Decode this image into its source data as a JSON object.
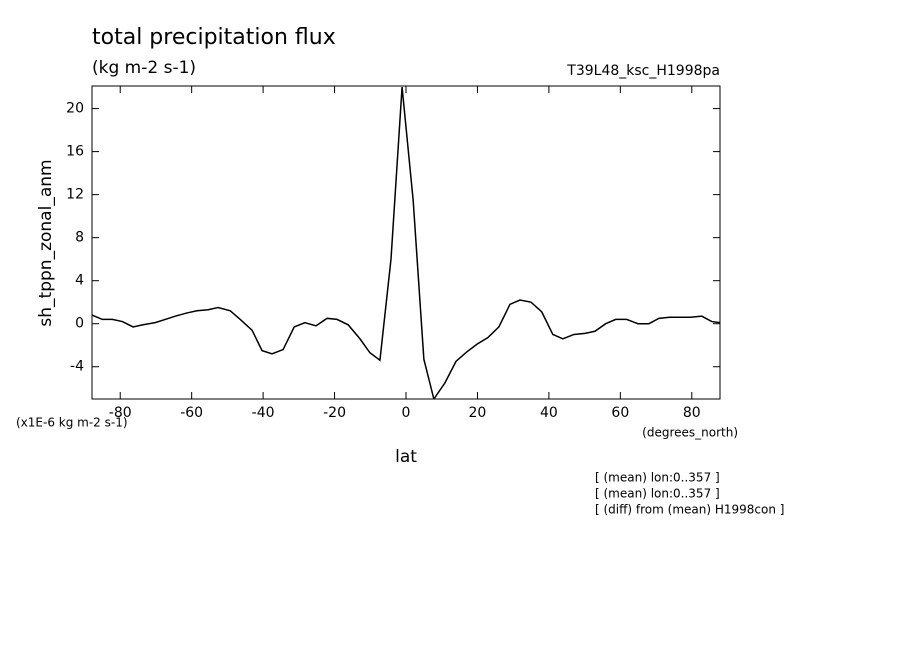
{
  "chart_data": {
    "type": "line",
    "title": "total precipitation flux",
    "subtitle": "(kg m-2 s-1)",
    "run_label": "T39L48_ksc_H1998pa",
    "y_label": "sh_tppn_zonal_anm",
    "y_unit_label": "(x1E-6 kg m-2 s-1)",
    "x_unit_label": "(degrees_north)",
    "x_label": "lat",
    "notes": [
      "[ (mean) lon:0..357 ]",
      "[ (mean) lon:0..357 ]",
      "[ (diff) from (mean) H1998con ]"
    ],
    "x": [
      -87.9,
      -85,
      -82.2,
      -79.4,
      -76.4,
      -73.6,
      -70.2,
      -67.4,
      -64.6,
      -61.3,
      -58.5,
      -55.4,
      -52.6,
      -49.2,
      -46.4,
      -43.1,
      -40.3,
      -37.5,
      -34.4,
      -31.3,
      -28.3,
      -25.2,
      -22.1,
      -19.3,
      -16.2,
      -12.9,
      -10.1,
      -7.3,
      -4.2,
      -1.1,
      2.0,
      5.0,
      7.8,
      10.9,
      14.0,
      17.1,
      19.9,
      22.9,
      26.0,
      29.1,
      31.9,
      35.0,
      38.0,
      41.1,
      43.9,
      47.0,
      50.1,
      52.9,
      55.9,
      58.7,
      61.8,
      64.9,
      68.0,
      70.8,
      73.8,
      76.6,
      79.7,
      82.8,
      85.6,
      87.9
    ],
    "series": [
      {
        "color": "#000000",
        "values": [
          0.8,
          0.4,
          0.4,
          0.2,
          -0.3,
          -0.1,
          0.1,
          0.4,
          0.7,
          1.0,
          1.2,
          1.3,
          1.5,
          1.2,
          0.4,
          -0.6,
          -2.5,
          -2.8,
          -2.4,
          -0.3,
          0.1,
          -0.2,
          0.5,
          0.4,
          -0.1,
          -1.4,
          -2.7,
          -3.4,
          6.0,
          22,
          11.5,
          -3.3,
          -7.0,
          -5.5,
          -3.5,
          -2.6,
          -1.9,
          -1.3,
          -0.3,
          1.8,
          2.2,
          2.0,
          1.1,
          -1.0,
          -1.4,
          -1.0,
          -0.9,
          -0.7,
          0,
          0.4,
          0.4,
          0,
          0,
          0.5,
          0.6,
          0.6,
          0.6,
          0.7,
          0.2,
          0.1
        ]
      }
    ],
    "xlim": [
      -87.9,
      87.9
    ],
    "ylim": [
      -7,
      22.1
    ],
    "xticks": [
      -80,
      -60,
      -40,
      -20,
      0,
      20,
      40,
      60,
      80
    ],
    "yticks": [
      -4,
      0,
      4,
      8,
      12,
      16,
      20
    ]
  }
}
